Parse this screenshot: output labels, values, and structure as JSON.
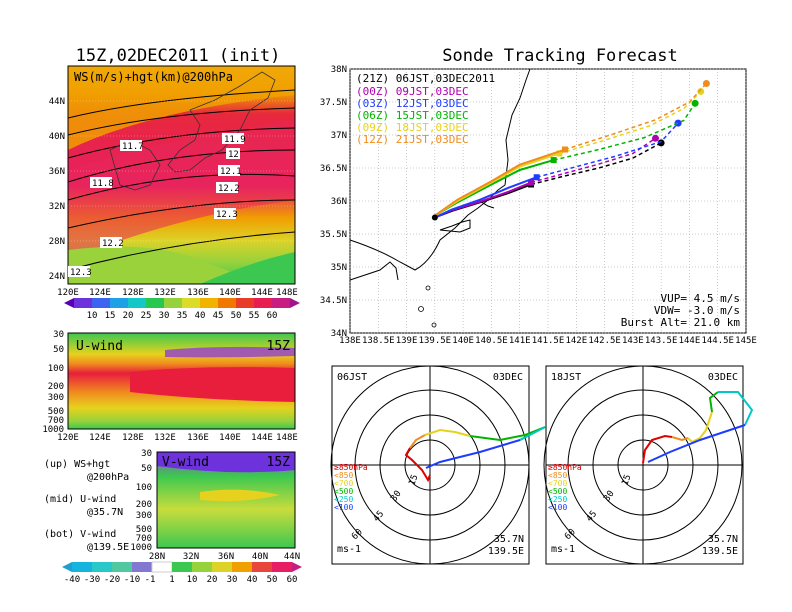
{
  "left_title": "15Z,02DEC2011 (init)",
  "right_title": "Sonde Tracking Forecast",
  "map_panel": {
    "label": "WS(m/s)+hgt(km)@200hPa",
    "lat_ticks": [
      "44N",
      "40N",
      "36N",
      "32N",
      "28N",
      "24N"
    ],
    "lon_ticks": [
      "120E",
      "124E",
      "128E",
      "132E",
      "136E",
      "140E",
      "144E",
      "148E"
    ],
    "contour_labels": [
      "11.7",
      "11.8",
      "11.9",
      "12",
      "12.1",
      "12.2",
      "12.3",
      "12.2",
      "12.3"
    ]
  },
  "ws_colorbar": [
    "10",
    "15",
    "20",
    "25",
    "30",
    "35",
    "40",
    "45",
    "50",
    "55",
    "60"
  ],
  "uwind_panel": {
    "label": "U-wind",
    "time": "15Z",
    "y_ticks": [
      "30",
      "50",
      "100",
      "200",
      "300",
      "500",
      "700",
      "1000"
    ],
    "x_ticks": [
      "120E",
      "124E",
      "128E",
      "132E",
      "136E",
      "140E",
      "144E",
      "148E"
    ]
  },
  "vwind_panel": {
    "label": "V-wind",
    "time": "15Z",
    "y_ticks": [
      "30",
      "50",
      "100",
      "200",
      "300",
      "500",
      "700",
      "1000"
    ],
    "x_ticks": [
      "28N",
      "32N",
      "36N",
      "40N",
      "44N"
    ]
  },
  "legend_text": {
    "up": "(up) WS+hgt",
    "up2": "@200hPa",
    "mid": "(mid) U-wind",
    "mid2": "@35.7N",
    "bot": "(bot) V-wind",
    "bot2": "@139.5E"
  },
  "wind_colorbar": [
    "-40",
    "-30",
    "-20",
    "-10",
    "-1",
    "1",
    "10",
    "20",
    "30",
    "40",
    "50",
    "60"
  ],
  "chart_data": {
    "type": "line",
    "title": "Sonde Tracking Forecast",
    "xlim": [
      138,
      145
    ],
    "ylim": [
      34,
      38
    ],
    "x_ticks": [
      "138E",
      "138.5E",
      "139E",
      "139.5E",
      "140E",
      "140.5E",
      "141E",
      "141.5E",
      "142E",
      "142.5E",
      "143E",
      "143.5E",
      "144E",
      "144.5E",
      "145E"
    ],
    "y_ticks": [
      "38N",
      "37.5N",
      "37N",
      "36.5N",
      "36N",
      "35.5N",
      "35N",
      "34.5N",
      "34N"
    ],
    "start": {
      "lon": 139.5,
      "lat": 35.75
    },
    "series": [
      {
        "name": "(21Z) 06JST,03DEC2011",
        "color": "#000000",
        "x": [
          139.5,
          139.8,
          140.3,
          140.8,
          141.2,
          141.8,
          142.4,
          143.0,
          143.5
        ],
        "y": [
          35.75,
          35.85,
          35.98,
          36.12,
          36.25,
          36.38,
          36.5,
          36.65,
          36.88
        ]
      },
      {
        "name": "(00Z) 09JST,03DEC",
        "color": "#b000b0",
        "x": [
          139.5,
          139.8,
          140.3,
          140.8,
          141.2,
          141.8,
          142.4,
          143.0,
          143.4
        ],
        "y": [
          35.75,
          35.86,
          35.99,
          36.14,
          36.28,
          36.42,
          36.56,
          36.72,
          36.95
        ]
      },
      {
        "name": "(03Z) 12JST,03DEC",
        "color": "#1e3cff",
        "x": [
          139.5,
          139.8,
          140.3,
          140.8,
          141.3,
          142.0,
          142.7,
          143.5,
          143.8
        ],
        "y": [
          35.75,
          35.87,
          36.02,
          36.2,
          36.36,
          36.52,
          36.68,
          36.9,
          37.18
        ]
      },
      {
        "name": "(06Z) 15JST,03DEC",
        "color": "#00b400",
        "x": [
          139.5,
          139.9,
          140.5,
          141.0,
          141.6,
          142.4,
          143.2,
          143.9,
          144.1
        ],
        "y": [
          35.78,
          35.98,
          36.25,
          36.47,
          36.62,
          36.78,
          36.96,
          37.22,
          37.48
        ]
      },
      {
        "name": "(09Z) 18JST,03DEC",
        "color": "#e6d21e",
        "x": [
          139.5,
          139.9,
          140.5,
          141.0,
          141.7,
          142.5,
          143.3,
          143.9,
          144.2
        ],
        "y": [
          35.78,
          36.0,
          36.28,
          36.52,
          36.72,
          36.92,
          37.14,
          37.4,
          37.66
        ]
      },
      {
        "name": "(12Z) 21JST,03DEC",
        "color": "#f08c1e",
        "x": [
          139.5,
          139.9,
          140.5,
          141.0,
          141.8,
          142.6,
          143.4,
          144.0,
          144.3
        ],
        "y": [
          35.78,
          36.02,
          36.3,
          36.55,
          36.78,
          37.0,
          37.23,
          37.5,
          37.78
        ]
      }
    ],
    "annotations": {
      "vup": "VUP= 4.5 m/s",
      "vdw": "VDW= -3.0 m/s",
      "burst": "Burst Alt= 21.0 km"
    }
  },
  "hodo_left": {
    "time": "06JST",
    "date": "03DEC",
    "ring_labels": [
      "15",
      "30",
      "45",
      "60"
    ],
    "levels": [
      "≥850hPa",
      "<850",
      "<700",
      "<500",
      "<250",
      "<100"
    ],
    "level_colors": [
      "#e00000",
      "#f08c1e",
      "#e6d21e",
      "#00b400",
      "#00c8c8",
      "#1e3cff"
    ],
    "units": "ms-1",
    "lat": "35.7N",
    "lon": "139.5E"
  },
  "hodo_right": {
    "time": "18JST",
    "date": "03DEC",
    "ring_labels": [
      "15",
      "30",
      "45",
      "60"
    ],
    "levels": [
      "≥850hPa",
      "<850",
      "<700",
      "<500",
      "<250",
      "<100"
    ],
    "level_colors": [
      "#e00000",
      "#f08c1e",
      "#e6d21e",
      "#00b400",
      "#00c8c8",
      "#1e3cff"
    ],
    "units": "ms-1",
    "lat": "35.7N",
    "lon": "139.5E"
  }
}
